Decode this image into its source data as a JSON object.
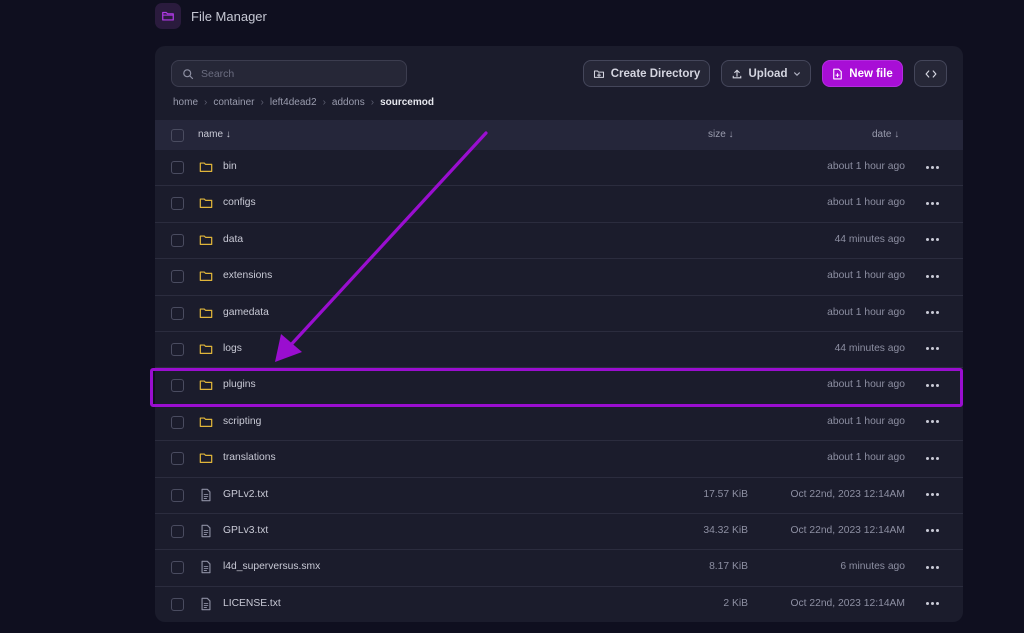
{
  "app": {
    "title": "File Manager"
  },
  "toolbar": {
    "search_placeholder": "Search",
    "create_directory_label": "Create Directory",
    "upload_label": "Upload",
    "new_file_label": "New file"
  },
  "breadcrumb": [
    "home",
    "container",
    "left4dead2",
    "addons",
    "sourcemod"
  ],
  "table": {
    "headers": {
      "name": "name ↓",
      "size": "size ↓",
      "date": "date ↓"
    },
    "rows": [
      {
        "type": "folder",
        "name": "bin",
        "size": "",
        "date": "about 1 hour ago"
      },
      {
        "type": "folder",
        "name": "configs",
        "size": "",
        "date": "about 1 hour ago"
      },
      {
        "type": "folder",
        "name": "data",
        "size": "",
        "date": "44 minutes ago"
      },
      {
        "type": "folder",
        "name": "extensions",
        "size": "",
        "date": "about 1 hour ago"
      },
      {
        "type": "folder",
        "name": "gamedata",
        "size": "",
        "date": "about 1 hour ago"
      },
      {
        "type": "folder",
        "name": "logs",
        "size": "",
        "date": "44 minutes ago"
      },
      {
        "type": "folder",
        "name": "plugins",
        "size": "",
        "date": "about 1 hour ago"
      },
      {
        "type": "folder",
        "name": "scripting",
        "size": "",
        "date": "about 1 hour ago"
      },
      {
        "type": "folder",
        "name": "translations",
        "size": "",
        "date": "about 1 hour ago"
      },
      {
        "type": "file",
        "name": "GPLv2.txt",
        "size": "17.57 KiB",
        "date": "Oct 22nd, 2023 12:14AM"
      },
      {
        "type": "file",
        "name": "GPLv3.txt",
        "size": "34.32 KiB",
        "date": "Oct 22nd, 2023 12:14AM"
      },
      {
        "type": "file",
        "name": "l4d_superversus.smx",
        "size": "8.17 KiB",
        "date": "6 minutes ago"
      },
      {
        "type": "file",
        "name": "LICENSE.txt",
        "size": "2 KiB",
        "date": "Oct 22nd, 2023 12:14AM"
      }
    ]
  },
  "annotation": {
    "highlighted_row": "plugins",
    "color": "#9a0ed0"
  },
  "colors": {
    "accent": "#a80ed6",
    "folder": "#e0b53a",
    "background": "#0f0f1f",
    "panel": "#1b1c2c"
  }
}
